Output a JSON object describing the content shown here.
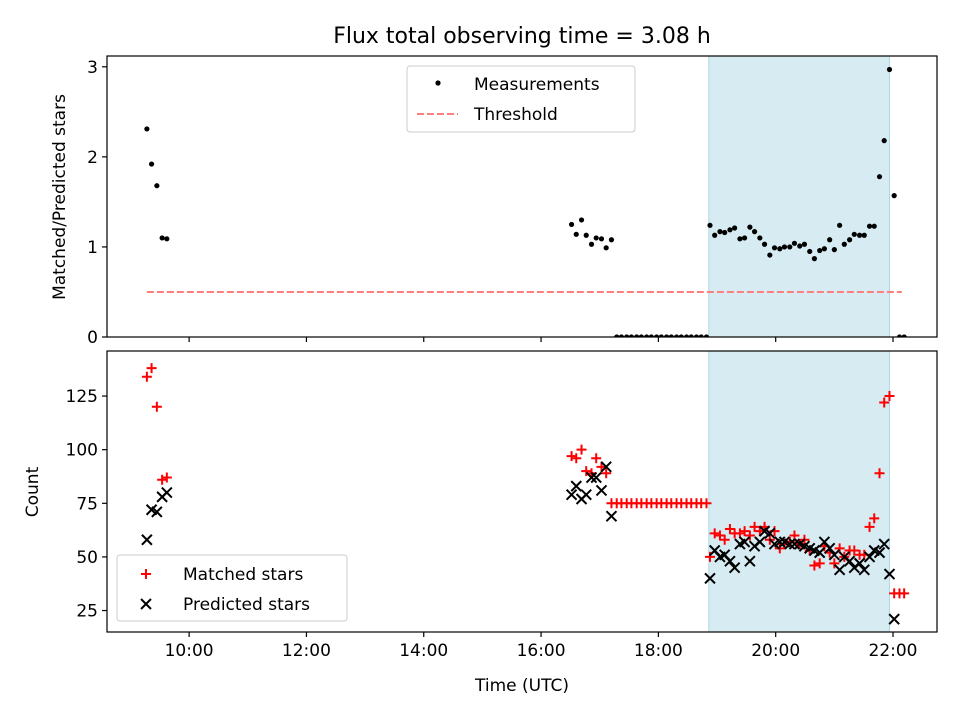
{
  "chart_data": [
    {
      "type": "scatter",
      "title": "Flux total observing time = 3.08 h",
      "ylabel": "Matched/Predicted stars",
      "xlabel": "",
      "x_unit": "hours UTC",
      "xlim": [
        8.6,
        22.75
      ],
      "ylim": [
        0,
        3.12
      ],
      "yticks": [
        0,
        1,
        2,
        3
      ],
      "xtick_labels": [],
      "highlight_span": [
        18.86,
        21.94
      ],
      "colors": {
        "measurements": "#000000",
        "threshold": "#ff7f7f",
        "span": "#add8e6"
      },
      "legend": {
        "position": "top-center",
        "entries": [
          "Measurements",
          "Threshold"
        ]
      },
      "series": [
        {
          "name": "Measurements",
          "marker": "dot",
          "points": [
            [
              9.28,
              2.31
            ],
            [
              9.36,
              1.92
            ],
            [
              9.45,
              1.68
            ],
            [
              9.54,
              1.1
            ],
            [
              9.62,
              1.09
            ],
            [
              16.52,
              1.25
            ],
            [
              16.6,
              1.14
            ],
            [
              16.69,
              1.3
            ],
            [
              16.77,
              1.13
            ],
            [
              16.86,
              1.03
            ],
            [
              16.94,
              1.1
            ],
            [
              17.03,
              1.09
            ],
            [
              17.11,
              0.99
            ],
            [
              17.2,
              1.08
            ],
            [
              17.29,
              0
            ],
            [
              17.37,
              0
            ],
            [
              17.46,
              0
            ],
            [
              17.54,
              0
            ],
            [
              17.63,
              0
            ],
            [
              17.71,
              0
            ],
            [
              17.8,
              0
            ],
            [
              17.88,
              0
            ],
            [
              17.97,
              0
            ],
            [
              18.05,
              0
            ],
            [
              18.14,
              0
            ],
            [
              18.22,
              0
            ],
            [
              18.31,
              0
            ],
            [
              18.39,
              0
            ],
            [
              18.48,
              0
            ],
            [
              18.56,
              0
            ],
            [
              18.65,
              0
            ],
            [
              18.73,
              0
            ],
            [
              18.82,
              0
            ],
            [
              18.88,
              1.24
            ],
            [
              18.96,
              1.13
            ],
            [
              19.05,
              1.17
            ],
            [
              19.13,
              1.16
            ],
            [
              19.22,
              1.19
            ],
            [
              19.3,
              1.21
            ],
            [
              19.39,
              1.09
            ],
            [
              19.47,
              1.1
            ],
            [
              19.56,
              1.22
            ],
            [
              19.64,
              1.17
            ],
            [
              19.73,
              1.1
            ],
            [
              19.81,
              1.03
            ],
            [
              19.9,
              0.91
            ],
            [
              19.98,
              0.99
            ],
            [
              20.07,
              0.98
            ],
            [
              20.15,
              1.0
            ],
            [
              20.24,
              1.0
            ],
            [
              20.32,
              1.04
            ],
            [
              20.41,
              1.01
            ],
            [
              20.49,
              1.03
            ],
            [
              20.58,
              0.95
            ],
            [
              20.66,
              0.87
            ],
            [
              20.75,
              0.96
            ],
            [
              20.83,
              0.98
            ],
            [
              20.92,
              1.08
            ],
            [
              21.0,
              0.97
            ],
            [
              21.09,
              1.24
            ],
            [
              21.17,
              1.03
            ],
            [
              21.26,
              1.08
            ],
            [
              21.34,
              1.14
            ],
            [
              21.43,
              1.13
            ],
            [
              21.51,
              1.13
            ],
            [
              21.6,
              1.23
            ],
            [
              21.68,
              1.23
            ],
            [
              21.77,
              1.78
            ],
            [
              21.85,
              2.18
            ],
            [
              21.94,
              2.97
            ],
            [
              22.02,
              1.57
            ],
            [
              22.11,
              0
            ],
            [
              22.19,
              0
            ]
          ]
        },
        {
          "name": "Threshold",
          "marker": "dashed-line",
          "x": [
            9.28,
            22.15
          ],
          "y": [
            0.5,
            0.5
          ]
        }
      ]
    },
    {
      "type": "scatter",
      "title": "",
      "ylabel": "Count",
      "xlabel": "Time (UTC)",
      "x_unit": "hours UTC",
      "xlim": [
        8.6,
        22.75
      ],
      "ylim": [
        15,
        146
      ],
      "yticks": [
        25,
        50,
        75,
        100,
        125
      ],
      "xticks": [
        10,
        12,
        14,
        16,
        18,
        20,
        22
      ],
      "xtick_labels": [
        "10:00",
        "12:00",
        "14:00",
        "16:00",
        "18:00",
        "20:00",
        "22:00"
      ],
      "highlight_span": [
        18.86,
        21.94
      ],
      "colors": {
        "matched": "#ff0000",
        "predicted": "#000000",
        "span": "#add8e6"
      },
      "legend": {
        "position": "bottom-left",
        "entries": [
          "Matched stars",
          "Predicted stars"
        ]
      },
      "series": [
        {
          "name": "Matched stars",
          "marker": "plus",
          "points": [
            [
              9.28,
              134
            ],
            [
              9.36,
              138
            ],
            [
              9.45,
              120
            ],
            [
              9.54,
              86
            ],
            [
              9.62,
              87
            ],
            [
              16.52,
              97
            ],
            [
              16.6,
              96
            ],
            [
              16.69,
              100
            ],
            [
              16.77,
              90
            ],
            [
              16.86,
              89
            ],
            [
              16.94,
              96
            ],
            [
              17.03,
              92
            ],
            [
              17.11,
              89
            ],
            [
              17.2,
              75
            ],
            [
              17.29,
              75
            ],
            [
              17.37,
              75
            ],
            [
              17.46,
              75
            ],
            [
              17.54,
              75
            ],
            [
              17.63,
              75
            ],
            [
              17.71,
              75
            ],
            [
              17.8,
              75
            ],
            [
              17.88,
              75
            ],
            [
              17.97,
              75
            ],
            [
              18.05,
              75
            ],
            [
              18.14,
              75
            ],
            [
              18.22,
              75
            ],
            [
              18.31,
              75
            ],
            [
              18.39,
              75
            ],
            [
              18.48,
              75
            ],
            [
              18.56,
              75
            ],
            [
              18.65,
              75
            ],
            [
              18.73,
              75
            ],
            [
              18.82,
              75
            ],
            [
              18.88,
              50
            ],
            [
              18.96,
              61
            ],
            [
              19.05,
              60
            ],
            [
              19.13,
              58
            ],
            [
              19.22,
              63
            ],
            [
              19.3,
              61
            ],
            [
              19.39,
              61
            ],
            [
              19.47,
              62
            ],
            [
              19.56,
              60
            ],
            [
              19.64,
              64
            ],
            [
              19.73,
              62
            ],
            [
              19.81,
              64
            ],
            [
              19.9,
              58
            ],
            [
              19.98,
              62
            ],
            [
              20.07,
              54
            ],
            [
              20.15,
              56
            ],
            [
              20.24,
              57
            ],
            [
              20.32,
              60
            ],
            [
              20.41,
              56
            ],
            [
              20.49,
              58
            ],
            [
              20.58,
              53
            ],
            [
              20.66,
              46
            ],
            [
              20.75,
              47
            ],
            [
              20.83,
              55
            ],
            [
              20.92,
              52
            ],
            [
              21.0,
              47
            ],
            [
              21.09,
              54
            ],
            [
              21.17,
              50
            ],
            [
              21.26,
              53
            ],
            [
              21.34,
              53
            ],
            [
              21.43,
              51
            ],
            [
              21.51,
              51
            ],
            [
              21.6,
              64
            ],
            [
              21.68,
              68
            ],
            [
              21.77,
              89
            ],
            [
              21.85,
              122
            ],
            [
              21.94,
              125
            ],
            [
              22.02,
              33
            ],
            [
              22.11,
              33
            ],
            [
              22.19,
              33
            ]
          ]
        },
        {
          "name": "Predicted stars",
          "marker": "x",
          "points": [
            [
              9.28,
              58
            ],
            [
              9.36,
              72
            ],
            [
              9.45,
              71
            ],
            [
              9.54,
              78
            ],
            [
              9.62,
              80
            ],
            [
              16.52,
              79
            ],
            [
              16.6,
              83
            ],
            [
              16.69,
              77
            ],
            [
              16.77,
              79
            ],
            [
              16.86,
              87
            ],
            [
              16.94,
              87
            ],
            [
              17.03,
              81
            ],
            [
              17.11,
              92
            ],
            [
              17.2,
              69
            ],
            [
              18.88,
              40
            ],
            [
              18.96,
              53
            ],
            [
              19.05,
              50
            ],
            [
              19.13,
              51
            ],
            [
              19.22,
              48
            ],
            [
              19.3,
              45
            ],
            [
              19.39,
              56
            ],
            [
              19.47,
              57
            ],
            [
              19.56,
              48
            ],
            [
              19.64,
              55
            ],
            [
              19.73,
              57
            ],
            [
              19.81,
              62
            ],
            [
              19.9,
              61
            ],
            [
              19.98,
              56
            ],
            [
              20.07,
              57
            ],
            [
              20.15,
              57
            ],
            [
              20.24,
              56
            ],
            [
              20.32,
              56
            ],
            [
              20.41,
              56
            ],
            [
              20.49,
              55
            ],
            [
              20.58,
              54
            ],
            [
              20.66,
              53
            ],
            [
              20.75,
              52
            ],
            [
              20.83,
              57
            ],
            [
              20.92,
              54
            ],
            [
              21.0,
              51
            ],
            [
              21.09,
              44
            ],
            [
              21.17,
              50
            ],
            [
              21.26,
              48
            ],
            [
              21.34,
              45
            ],
            [
              21.43,
              47
            ],
            [
              21.51,
              44
            ],
            [
              21.6,
              50
            ],
            [
              21.68,
              53
            ],
            [
              21.77,
              52
            ],
            [
              21.85,
              56
            ],
            [
              21.94,
              42
            ],
            [
              22.02,
              21
            ]
          ]
        }
      ]
    }
  ]
}
